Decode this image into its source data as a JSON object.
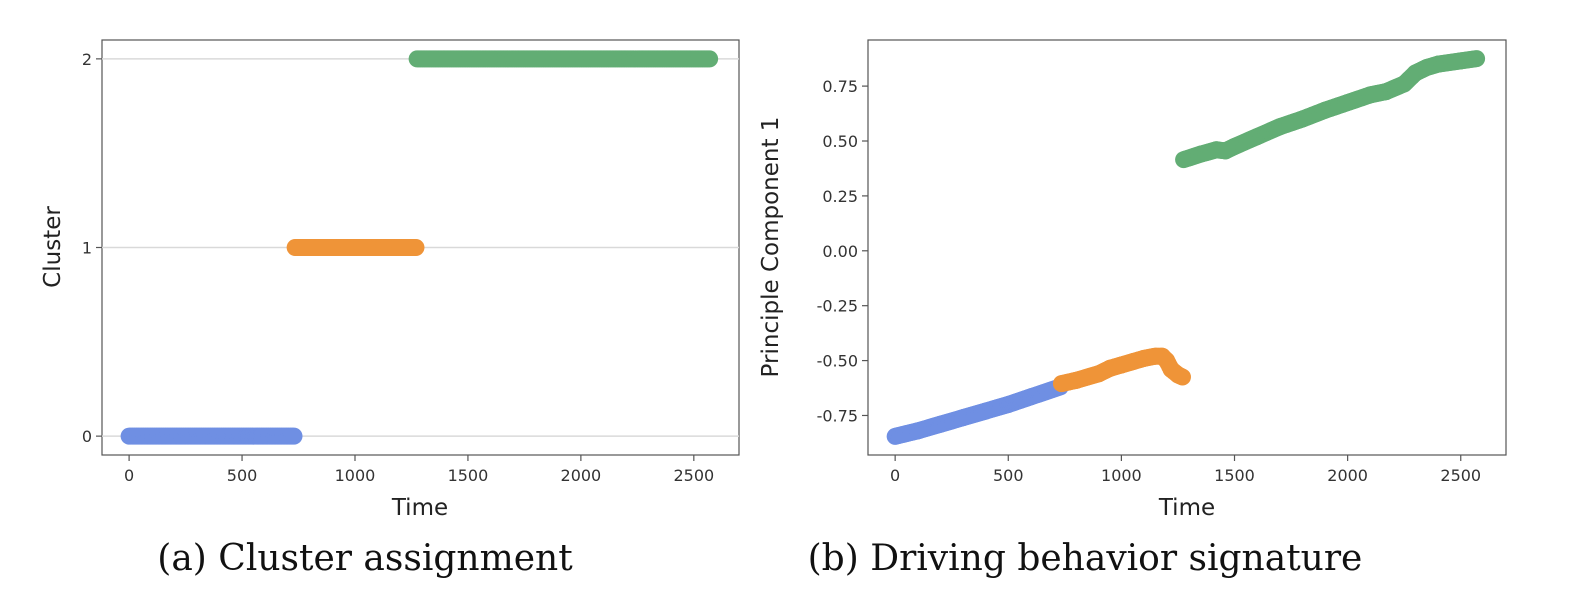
{
  "chart_data": [
    {
      "type": "scatter",
      "caption": "(a) Cluster assignment",
      "xlabel": "Time",
      "ylabel": "Cluster",
      "xlim": [
        -120,
        2700
      ],
      "ylim": [
        -0.1,
        2.1
      ],
      "xticks": [
        0,
        500,
        1000,
        1500,
        2000,
        2500
      ],
      "yticks": [
        0,
        1,
        2
      ],
      "grid": "horizontal",
      "series": [
        {
          "color": "#6f8fe3",
          "segments": [
            [
              0,
              0
            ],
            [
              730,
              0
            ]
          ]
        },
        {
          "color": "#ef9438",
          "segments": [
            [
              735,
              1
            ],
            [
              1270,
              1
            ]
          ]
        },
        {
          "color": "#62ad74",
          "segments": [
            [
              1275,
              2
            ],
            [
              2570,
              2
            ]
          ]
        }
      ]
    },
    {
      "type": "scatter",
      "caption": "(b) Driving behavior signature",
      "xlabel": "Time",
      "ylabel": "Principle Component 1",
      "xlim": [
        -120,
        2700
      ],
      "ylim": [
        -0.93,
        0.96
      ],
      "xticks": [
        0,
        500,
        1000,
        1500,
        2000,
        2500
      ],
      "yticks": [
        -0.75,
        -0.5,
        -0.25,
        0.0,
        0.25,
        0.5,
        0.75
      ],
      "grid": "none",
      "series": [
        {
          "color": "#6f8fe3",
          "points": [
            [
              0,
              -0.845
            ],
            [
              100,
              -0.82
            ],
            [
              200,
              -0.79
            ],
            [
              300,
              -0.76
            ],
            [
              400,
              -0.73
            ],
            [
              500,
              -0.7
            ],
            [
              600,
              -0.665
            ],
            [
              730,
              -0.62
            ]
          ]
        },
        {
          "color": "#ef9438",
          "points": [
            [
              735,
              -0.605
            ],
            [
              800,
              -0.59
            ],
            [
              900,
              -0.56
            ],
            [
              950,
              -0.535
            ],
            [
              1000,
              -0.52
            ],
            [
              1050,
              -0.505
            ],
            [
              1100,
              -0.49
            ],
            [
              1150,
              -0.48
            ],
            [
              1180,
              -0.48
            ],
            [
              1200,
              -0.5
            ],
            [
              1220,
              -0.54
            ],
            [
              1250,
              -0.565
            ],
            [
              1270,
              -0.575
            ]
          ]
        },
        {
          "color": "#62ad74",
          "points": [
            [
              1275,
              0.415
            ],
            [
              1350,
              0.44
            ],
            [
              1420,
              0.46
            ],
            [
              1460,
              0.455
            ],
            [
              1500,
              0.475
            ],
            [
              1600,
              0.52
            ],
            [
              1700,
              0.565
            ],
            [
              1800,
              0.6
            ],
            [
              1900,
              0.64
            ],
            [
              2000,
              0.675
            ],
            [
              2100,
              0.71
            ],
            [
              2170,
              0.725
            ],
            [
              2250,
              0.76
            ],
            [
              2300,
              0.81
            ],
            [
              2350,
              0.835
            ],
            [
              2400,
              0.85
            ],
            [
              2500,
              0.865
            ],
            [
              2570,
              0.875
            ]
          ]
        }
      ]
    }
  ]
}
